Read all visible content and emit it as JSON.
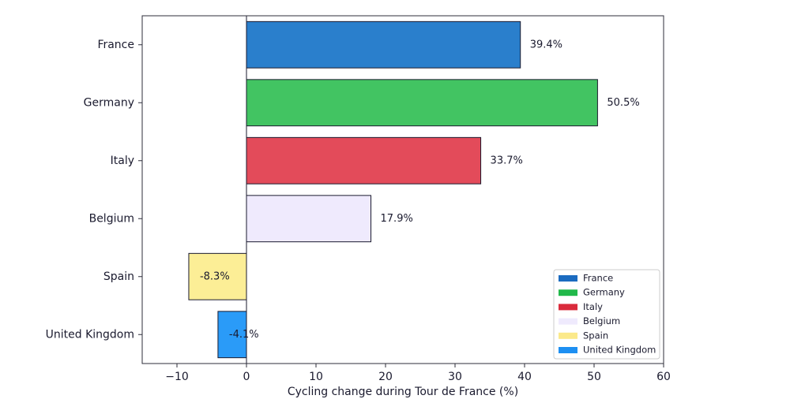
{
  "chart_data": {
    "type": "bar",
    "orientation": "horizontal",
    "title": "",
    "xlabel": "Cycling change during Tour de France (%)",
    "ylabel": "",
    "xlim": [
      -15,
      60
    ],
    "xticks": [
      -10,
      0,
      10,
      20,
      30,
      40,
      50,
      60
    ],
    "xtick_labels": [
      "−10",
      "0",
      "10",
      "20",
      "30",
      "40",
      "50",
      "60"
    ],
    "grid": false,
    "legend_position": "bottom-right",
    "categories": [
      "France",
      "Germany",
      "Italy",
      "Belgium",
      "Spain",
      "United Kingdom"
    ],
    "values": [
      39.4,
      50.5,
      33.7,
      17.9,
      -8.3,
      -4.1
    ],
    "value_labels": [
      "39.4%",
      "50.5%",
      "33.7%",
      "17.9%",
      "-8.3%",
      "-4.1%"
    ],
    "bar_colors": [
      "#2a7fcc",
      "#42c462",
      "#e34b5a",
      "#efeafd",
      "#fcee96",
      "#2a9bf8"
    ],
    "legend": [
      {
        "label": "France",
        "color": "#1b6bc0"
      },
      {
        "label": "Germany",
        "color": "#21b84a"
      },
      {
        "label": "Italy",
        "color": "#da2b3c"
      },
      {
        "label": "Belgium",
        "color": "#efeafd"
      },
      {
        "label": "Spain",
        "color": "#fbe98a"
      },
      {
        "label": "United Kingdom",
        "color": "#1d8ff2"
      }
    ]
  }
}
